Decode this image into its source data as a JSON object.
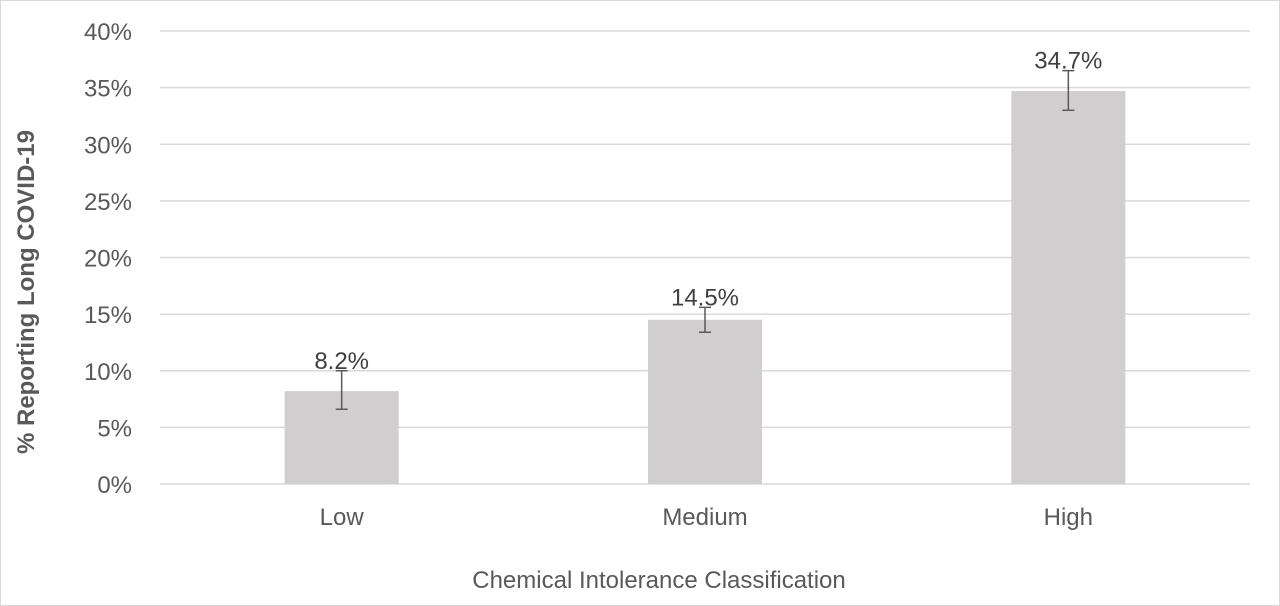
{
  "chart_data": {
    "type": "bar",
    "categories": [
      "Low",
      "Medium",
      "High"
    ],
    "values": [
      8.2,
      14.5,
      34.7
    ],
    "data_labels": [
      "8.2%",
      "14.5%",
      "34.7%"
    ],
    "error_bars": [
      {
        "low": 6.6,
        "high": 10.0
      },
      {
        "low": 13.4,
        "high": 15.6
      },
      {
        "low": 33.0,
        "high": 36.5
      }
    ],
    "title": "",
    "xlabel": "Chemical Intolerance Classification",
    "ylabel": "% Reporting Long COVID-19",
    "ylim": [
      0,
      40
    ],
    "yticks": [
      "0%",
      "5%",
      "10%",
      "15%",
      "20%",
      "25%",
      "30%",
      "35%",
      "40%"
    ],
    "grid": true,
    "legend": "none",
    "colors": {
      "bar": "#d0cece",
      "gridline": "#d9d9d9",
      "error_bar": "#595959"
    }
  }
}
